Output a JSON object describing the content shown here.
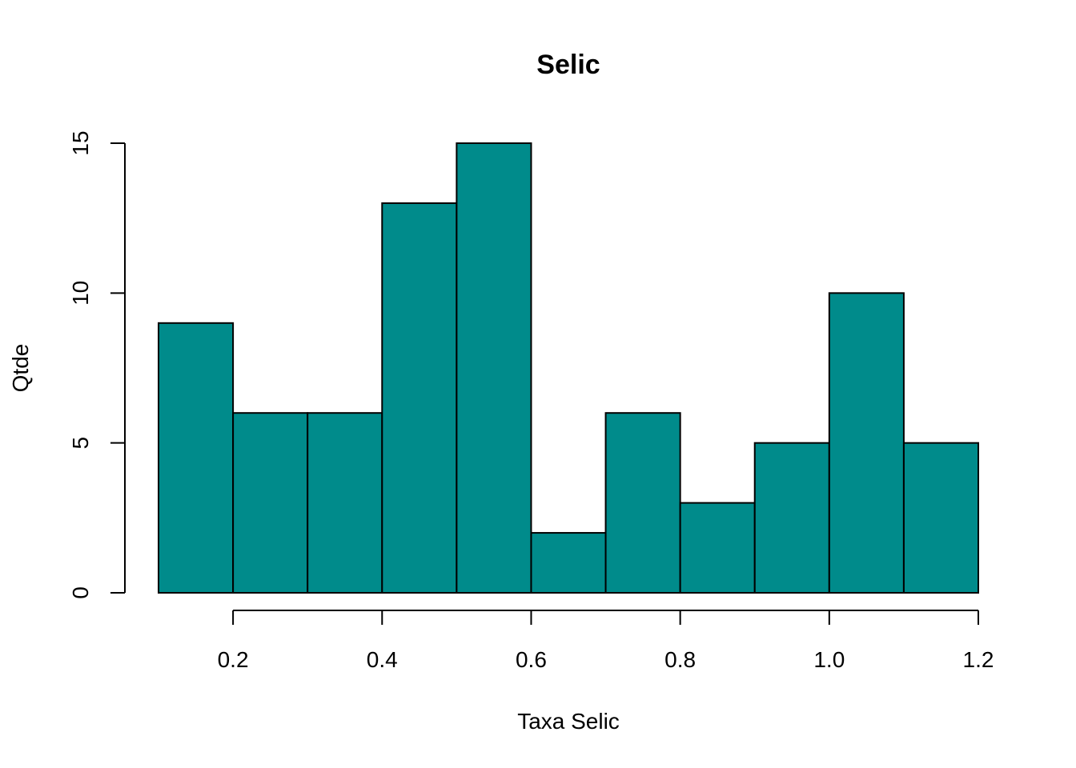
{
  "chart_data": {
    "type": "bar",
    "subtype": "histogram",
    "title": "Selic",
    "xlabel": "Taxa Selic",
    "ylabel": "Qtde",
    "bins": [
      {
        "from": 0.1,
        "to": 0.2,
        "count": 9
      },
      {
        "from": 0.2,
        "to": 0.3,
        "count": 6
      },
      {
        "from": 0.3,
        "to": 0.4,
        "count": 6
      },
      {
        "from": 0.4,
        "to": 0.5,
        "count": 13
      },
      {
        "from": 0.5,
        "to": 0.6,
        "count": 15
      },
      {
        "from": 0.6,
        "to": 0.7,
        "count": 2
      },
      {
        "from": 0.7,
        "to": 0.8,
        "count": 6
      },
      {
        "from": 0.8,
        "to": 0.9,
        "count": 3
      },
      {
        "from": 0.9,
        "to": 1.0,
        "count": 5
      },
      {
        "from": 1.0,
        "to": 1.1,
        "count": 10
      },
      {
        "from": 1.1,
        "to": 1.2,
        "count": 5
      }
    ],
    "xlim": [
      0.1,
      1.2
    ],
    "ylim": [
      0,
      15
    ],
    "x_ticks": [
      0.2,
      0.4,
      0.6,
      0.8,
      1.0,
      1.2
    ],
    "x_tick_labels": [
      "0.2",
      "0.4",
      "0.6",
      "0.8",
      "1.0",
      "1.2"
    ],
    "y_ticks": [
      0,
      5,
      10,
      15
    ],
    "y_tick_labels": [
      "0",
      "5",
      "10",
      "15"
    ],
    "bar_color": "#008B8B",
    "grid": false,
    "legend": "none"
  }
}
